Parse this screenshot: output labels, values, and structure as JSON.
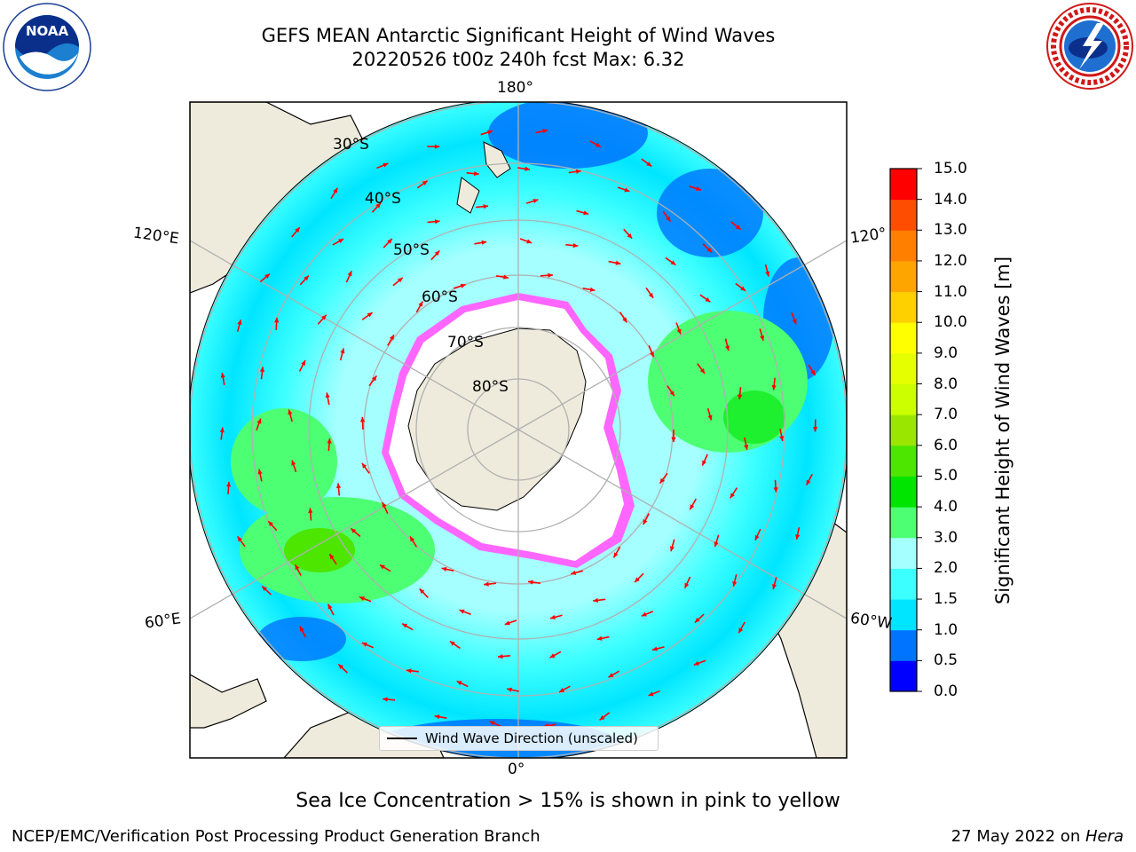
{
  "header": {
    "title_line1": "GEFS MEAN Antarctic Significant Height of Wind Waves",
    "title_line2": "20220526 t00z 240h fcst   Max: 6.32"
  },
  "logos": {
    "left": {
      "name": "noaa-logo",
      "text": "NOAA"
    },
    "right": {
      "name": "nws-logo",
      "text": "NATIONAL WEATHER SERVICE"
    }
  },
  "map": {
    "projection": "south-polar-stereographic",
    "longitude_labels": {
      "top": "180°",
      "bottom": "0°",
      "left_upper": "120°E",
      "left_lower": "60°E",
      "right_upper": "120°",
      "right_lower": "60°W"
    },
    "latitude_labels": [
      "30°S",
      "40°S",
      "50°S",
      "60°S",
      "70°S",
      "80°S"
    ],
    "legend_label": "Wind Wave Direction (unscaled)",
    "arrow_color": "#ff0000",
    "land_color": "#efebdc",
    "ice_edge_colors": [
      "#ff00ff",
      "#ffa500",
      "#ffff00"
    ]
  },
  "colorbar": {
    "label": "Significant Height of Wind Waves [m]",
    "ticks": [
      "0.0",
      "0.5",
      "1.0",
      "1.5",
      "2.0",
      "3.0",
      "4.0",
      "5.0",
      "6.0",
      "7.0",
      "8.0",
      "9.0",
      "10.0",
      "11.0",
      "12.0",
      "13.0",
      "14.0",
      "15.0"
    ],
    "colors": [
      "#0000ff",
      "#0073ff",
      "#00e5ff",
      "#3cffff",
      "#a5ffff",
      "#4dff73",
      "#00e500",
      "#4ce600",
      "#9ae600",
      "#ccff00",
      "#e6ff00",
      "#ffff00",
      "#ffd000",
      "#ffa500",
      "#ff7f00",
      "#ff4d00",
      "#ff0000"
    ]
  },
  "subtitle": "Sea Ice Concentration > 15% is shown in pink to yellow",
  "footer": {
    "left": "NCEP/EMC/Verification Post Processing Product Generation Branch",
    "right_date": "27 May 2022 on ",
    "right_host": "Hera"
  }
}
